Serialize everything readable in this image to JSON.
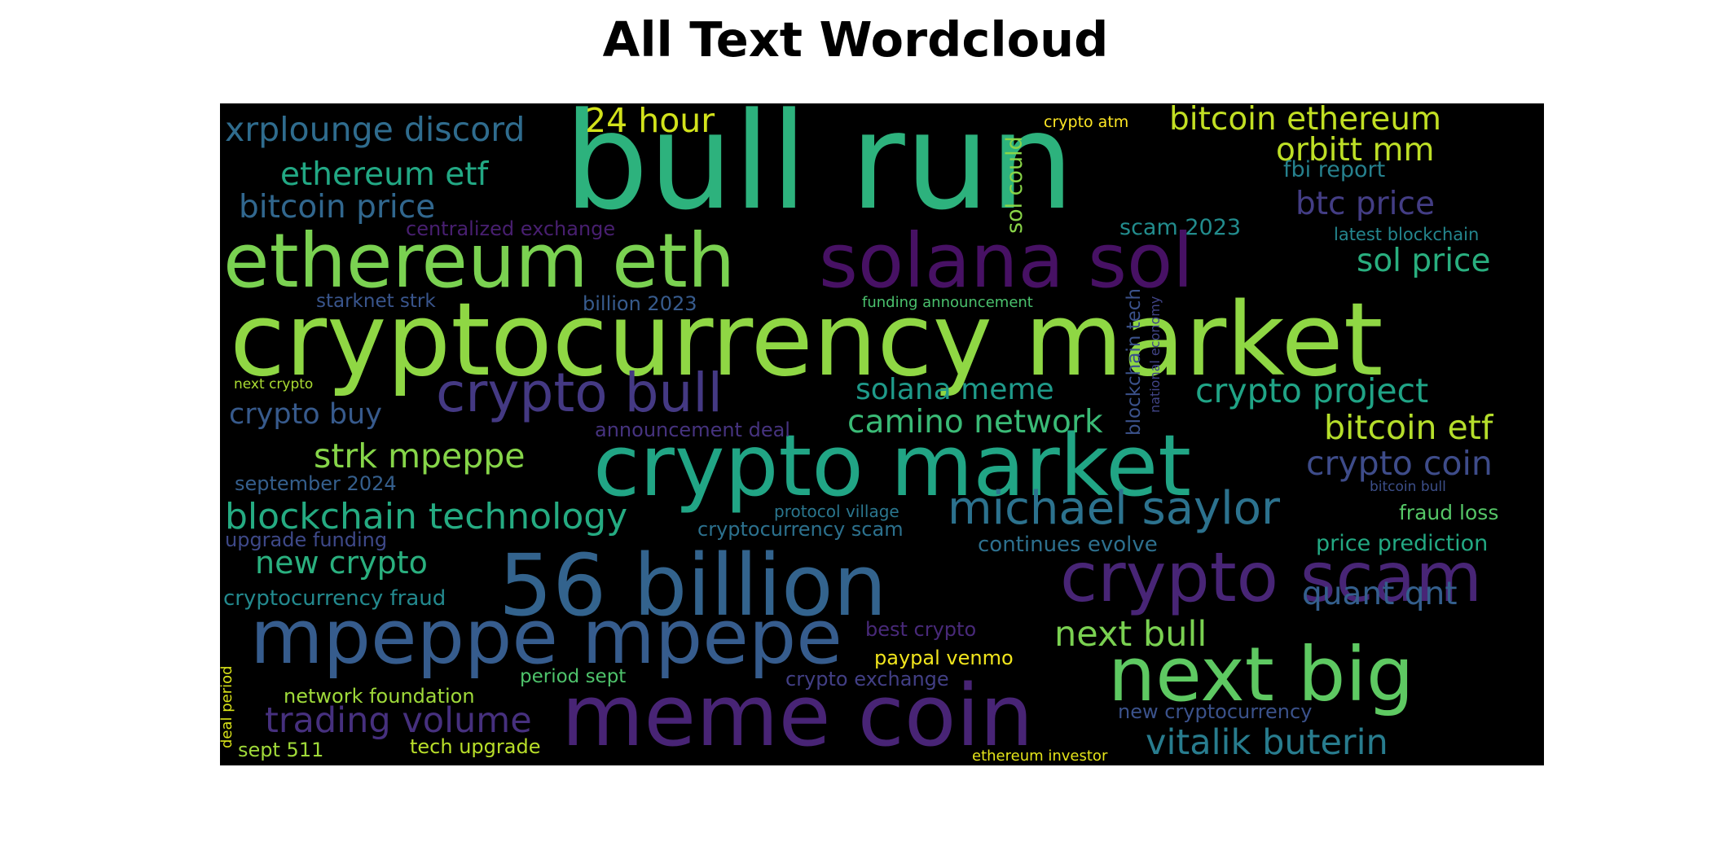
{
  "title": "All Text Wordcloud",
  "words": [
    {
      "text": "bull run",
      "color": "#2db27d"
    },
    {
      "text": "cryptocurrency market",
      "color": "#8fd744"
    },
    {
      "text": "ethereum eth",
      "color": "#7ad151"
    },
    {
      "text": "solana sol",
      "color": "#471164"
    },
    {
      "text": "crypto market",
      "color": "#21a585"
    },
    {
      "text": "56 billion",
      "color": "#33638d"
    },
    {
      "text": "crypto scam",
      "color": "#482576"
    },
    {
      "text": "mpeppe mpepe",
      "color": "#365c8d"
    },
    {
      "text": "meme coin",
      "color": "#482475"
    },
    {
      "text": "next big",
      "color": "#5ec962"
    },
    {
      "text": "crypto bull",
      "color": "#443983"
    },
    {
      "text": "michael saylor",
      "color": "#2c728e"
    },
    {
      "text": "blockchain technology",
      "color": "#25ab82"
    },
    {
      "text": "xrplounge discord",
      "color": "#2f6c8e"
    },
    {
      "text": "24 hour",
      "color": "#d2e21b"
    },
    {
      "text": "bitcoin ethereum",
      "color": "#c2df23"
    },
    {
      "text": "orbitt mm",
      "color": "#bddf26"
    },
    {
      "text": "ethereum etf",
      "color": "#22a884"
    },
    {
      "text": "bitcoin price",
      "color": "#31678e"
    },
    {
      "text": "btc price",
      "color": "#433d84"
    },
    {
      "text": "sol price",
      "color": "#29af7f"
    },
    {
      "text": "crypto project",
      "color": "#20a486"
    },
    {
      "text": "bitcoin etf",
      "color": "#b5de2b"
    },
    {
      "text": "crypto coin",
      "color": "#3e4c8a"
    },
    {
      "text": "solana meme",
      "color": "#1f9a8a"
    },
    {
      "text": "camino network",
      "color": "#3aba76"
    },
    {
      "text": "crypto buy",
      "color": "#375a8c"
    },
    {
      "text": "strk mpeppe",
      "color": "#86d549"
    },
    {
      "text": "new crypto",
      "color": "#2ab07f"
    },
    {
      "text": "trading volume",
      "color": "#46307e"
    },
    {
      "text": "next bull",
      "color": "#7ad151"
    },
    {
      "text": "quant qnt",
      "color": "#345f8d"
    },
    {
      "text": "vitalik buterin",
      "color": "#287c8e"
    },
    {
      "text": "sol could",
      "color": "#89d548"
    },
    {
      "text": "blockchain tech",
      "color": "#3b528b"
    },
    {
      "text": "national economy",
      "color": "#414487"
    },
    {
      "text": "crypto atm",
      "color": "#fde725"
    },
    {
      "text": "fbi report",
      "color": "#26818e"
    },
    {
      "text": "scam 2023",
      "color": "#228c8d"
    },
    {
      "text": "latest blockchain",
      "color": "#24868e"
    },
    {
      "text": "centralized exchange",
      "color": "#481f70"
    },
    {
      "text": "starknet strk",
      "color": "#39558c"
    },
    {
      "text": "billion 2023",
      "color": "#375b8d"
    },
    {
      "text": "funding announcement",
      "color": "#4ac16d"
    },
    {
      "text": "next crypto",
      "color": "#aadc32"
    },
    {
      "text": "announcement deal",
      "color": "#46337f"
    },
    {
      "text": "september 2024",
      "color": "#355f8d"
    },
    {
      "text": "protocol village",
      "color": "#2a768e"
    },
    {
      "text": "cryptocurrency scam",
      "color": "#2c718e"
    },
    {
      "text": "fraud loss",
      "color": "#55c667"
    },
    {
      "text": "bitcoin bull",
      "color": "#3c4f8a"
    },
    {
      "text": "upgrade funding",
      "color": "#3e4989"
    },
    {
      "text": "continues evolve",
      "color": "#2d708e"
    },
    {
      "text": "price prediction",
      "color": "#23a983"
    },
    {
      "text": "cryptocurrency fraud",
      "color": "#23898e"
    },
    {
      "text": "best crypto",
      "color": "#482979"
    },
    {
      "text": "paypal venmo",
      "color": "#f1e51d"
    },
    {
      "text": "period sept",
      "color": "#4ec36b"
    },
    {
      "text": "crypto exchange",
      "color": "#423f85"
    },
    {
      "text": "network foundation",
      "color": "#9fda3a"
    },
    {
      "text": "new cryptocurrency",
      "color": "#3b528b"
    },
    {
      "text": "deal period",
      "color": "#d8e219"
    },
    {
      "text": "sept 511",
      "color": "#a0da39"
    },
    {
      "text": "tech upgrade",
      "color": "#b8de29"
    },
    {
      "text": "ethereum investor",
      "color": "#e5e419"
    }
  ]
}
